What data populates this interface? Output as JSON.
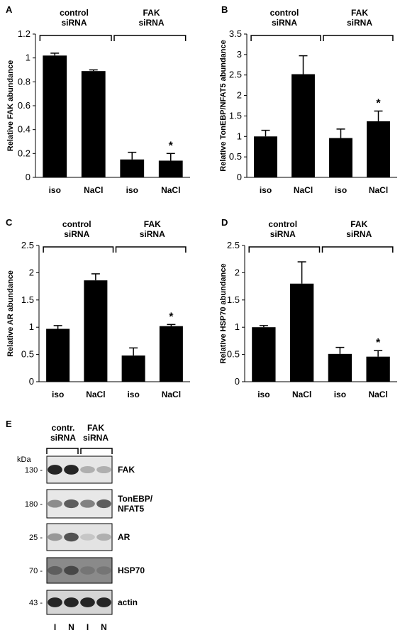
{
  "chart_data": [
    {
      "type": "bar",
      "panel": "A",
      "ylabel": "Relative FAK abundance",
      "ylim": [
        0,
        1.2
      ],
      "yticks": [
        "0",
        "0.2",
        "0.4",
        "0.6",
        "0.8",
        "1",
        "1.2"
      ],
      "categories": [
        "iso",
        "NaCl",
        "iso",
        "NaCl"
      ],
      "values": [
        1.02,
        0.89,
        0.15,
        0.14
      ],
      "errors": [
        0.02,
        0.01,
        0.06,
        0.06
      ],
      "significance": [
        "",
        "",
        "",
        "*"
      ],
      "groups": [
        "control\nsiRNA",
        "FAK\nsiRNA"
      ]
    },
    {
      "type": "bar",
      "panel": "B",
      "ylabel": "Relative TonEBP/NFAT5 abundance",
      "ylim": [
        0,
        3.5
      ],
      "yticks": [
        "0",
        "0.5",
        "1",
        "1.5",
        "2",
        "2.5",
        "3",
        "3.5"
      ],
      "categories": [
        "iso",
        "NaCl",
        "iso",
        "NaCl"
      ],
      "values": [
        1.0,
        2.52,
        0.96,
        1.37
      ],
      "errors": [
        0.15,
        0.45,
        0.22,
        0.25
      ],
      "significance": [
        "",
        "",
        "",
        "*"
      ],
      "groups": [
        "control\nsiRNA",
        "FAK\nsiRNA"
      ]
    },
    {
      "type": "bar",
      "panel": "C",
      "ylabel": "Relative AR abundance",
      "ylim": [
        0,
        2.5
      ],
      "yticks": [
        "0",
        "0.5",
        "1",
        "1.5",
        "2",
        "2.5"
      ],
      "categories": [
        "iso",
        "NaCl",
        "iso",
        "NaCl"
      ],
      "values": [
        0.97,
        1.86,
        0.48,
        1.02
      ],
      "errors": [
        0.06,
        0.12,
        0.14,
        0.03
      ],
      "significance": [
        "",
        "",
        "",
        "*"
      ],
      "groups": [
        "control\nsiRNA",
        "FAK\nsiRNA"
      ]
    },
    {
      "type": "bar",
      "panel": "D",
      "ylabel": "Relative HSP70 abundance",
      "ylim": [
        0,
        2.5
      ],
      "yticks": [
        "0",
        "0.5",
        "1",
        "1.5",
        "2",
        "2.5"
      ],
      "categories": [
        "iso",
        "NaCl",
        "iso",
        "NaCl"
      ],
      "values": [
        1.0,
        1.8,
        0.51,
        0.46
      ],
      "errors": [
        0.03,
        0.4,
        0.12,
        0.11
      ],
      "significance": [
        "",
        "",
        "",
        "*"
      ],
      "groups": [
        "control\nsiRNA",
        "FAK\nsiRNA"
      ]
    }
  ],
  "blot": {
    "panel": "E",
    "groups": [
      "contr.\nsiRNA",
      "FAK\nsiRNA"
    ],
    "kda_label": "kDa",
    "lanes": [
      "I",
      "N",
      "I",
      "N"
    ],
    "rows": [
      {
        "mw": "130 -",
        "label": "FAK",
        "intensity": [
          0.95,
          0.95,
          0.35,
          0.35
        ],
        "bg": "#e6e6e6"
      },
      {
        "mw": "180 -",
        "label": "TonEBP/\nNFAT5",
        "intensity": [
          0.5,
          0.7,
          0.55,
          0.7
        ],
        "bg": "#e8e8e8"
      },
      {
        "mw": "25 -",
        "label": "AR",
        "intensity": [
          0.45,
          0.75,
          0.25,
          0.35
        ],
        "bg": "#e3e3e3"
      },
      {
        "mw": "70 -",
        "label": "HSP70",
        "intensity": [
          0.7,
          0.8,
          0.6,
          0.6
        ],
        "bg": "#8a8a8a"
      },
      {
        "mw": "43 -",
        "label": "actin",
        "intensity": [
          0.95,
          0.95,
          0.95,
          0.95
        ],
        "bg": "#d5d5d5"
      }
    ]
  }
}
